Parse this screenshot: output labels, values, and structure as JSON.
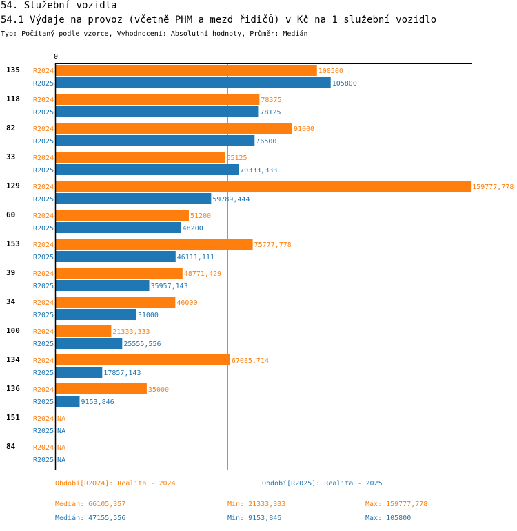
{
  "header": {
    "title": "54. Služební vozidla",
    "subtitle": "54.1 Výdaje na provoz (včetně PHM a mezd řidičů) v Kč na 1 služební vozidlo",
    "type_line": "Typ: Počítaný podle vzorce, Vyhodnocení: Absolutní hodnoty, Průměr: Medián"
  },
  "colors": {
    "r2024": "#ff7f0e",
    "r2025": "#1f77b4"
  },
  "chart_data": {
    "type": "bar",
    "orientation": "horizontal",
    "axis_zero_label": "0",
    "xlim": [
      0,
      160000
    ],
    "categories": [
      "135",
      "118",
      "82",
      "33",
      "129",
      "60",
      "153",
      "39",
      "34",
      "100",
      "134",
      "136",
      "151",
      "84"
    ],
    "series": [
      {
        "name": "R2024",
        "values": [
          100500,
          78375,
          91000,
          65125,
          159777.778,
          51200,
          75777.778,
          48771.429,
          46000,
          21333.333,
          67085.714,
          35000,
          null,
          null
        ],
        "labels": [
          "100500",
          "78375",
          "91000",
          "65125",
          "159777,778",
          "51200",
          "75777,778",
          "48771,429",
          "46000",
          "21333,333",
          "67085,714",
          "35000",
          "NA",
          "NA"
        ]
      },
      {
        "name": "R2025",
        "values": [
          105800,
          78125,
          76500,
          70333.333,
          59789.444,
          48200,
          46111.111,
          35957.143,
          31000,
          25555.556,
          17857.143,
          9153.846,
          null,
          null
        ],
        "labels": [
          "105800",
          "78125",
          "76500",
          "70333,333",
          "59789,444",
          "48200",
          "46111,111",
          "35957,143",
          "31000",
          "25555,556",
          "17857,143",
          "9153,846",
          "NA",
          "NA"
        ]
      }
    ],
    "reference_lines": [
      {
        "series": "R2024",
        "value": 66105.357
      },
      {
        "series": "R2025",
        "value": 47155.556
      }
    ]
  },
  "legend": {
    "period_2024": "Období[R2024]: Realita - 2024",
    "period_2025": "Období[R2025]: Realita - 2025",
    "median_2024": "Medián: 66105,357",
    "min_2024": "Min: 21333,333",
    "max_2024": "Max: 159777,778",
    "median_2025": "Medián: 47155,556",
    "min_2025": "Min: 9153,846",
    "max_2025": "Max: 105800"
  }
}
